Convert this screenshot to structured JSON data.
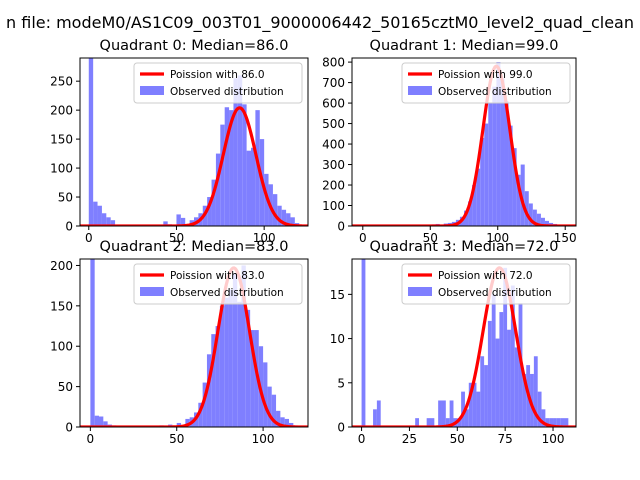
{
  "figure": {
    "suptitle": "n file: modeM0/AS1C09_003T01_9000006442_50165cztM0_level2_quad_clean",
    "colors": {
      "histogram": "#7f7fff",
      "poisson": "#ff0000",
      "axis": "#000000",
      "background": "#ffffff"
    },
    "legend_location": "upper right"
  },
  "chart_data": [
    {
      "type": "bar",
      "title": "Quadrant 0: Median=86.0",
      "median": 86.0,
      "xlim": [
        -5,
        125
      ],
      "ylim": [
        0,
        290
      ],
      "xticks": [
        0,
        50,
        100
      ],
      "yticks": [
        0,
        50,
        100,
        150,
        200,
        250
      ],
      "legend": [
        "Poission with 86.0",
        "Observed distribution"
      ],
      "poisson_peak": 204,
      "histogram": {
        "bin_width": 2.5,
        "x": [
          0,
          2.5,
          5,
          7.5,
          10,
          12.5,
          42.5,
          45,
          50,
          52.5,
          57.5,
          60,
          62.5,
          65,
          67.5,
          70,
          72.5,
          75,
          77.5,
          80,
          82.5,
          85,
          87.5,
          90,
          92.5,
          95,
          97.5,
          100,
          102.5,
          105,
          107.5,
          110,
          112.5,
          115,
          117.5,
          120
        ],
        "counts": [
          290,
          42,
          35,
          22,
          15,
          10,
          8,
          3,
          20,
          14,
          10,
          15,
          22,
          35,
          50,
          80,
          125,
          175,
          205,
          200,
          255,
          260,
          210,
          130,
          135,
          200,
          150,
          90,
          72,
          55,
          35,
          28,
          22,
          15,
          5,
          2
        ]
      }
    },
    {
      "type": "bar",
      "title": "Quadrant 1: Median=99.0",
      "median": 99.0,
      "xlim": [
        -8,
        158
      ],
      "ylim": [
        0,
        820
      ],
      "xticks": [
        0,
        50,
        100,
        150
      ],
      "yticks": [
        0,
        100,
        200,
        300,
        400,
        500,
        600,
        700,
        800
      ],
      "legend": [
        "Poission with 99.0",
        "Observed distribution"
      ],
      "poisson_peak": 780,
      "histogram": {
        "bin_width": 3,
        "x": [
          51,
          54,
          57,
          60,
          63,
          66,
          69,
          72,
          75,
          78,
          81,
          84,
          87,
          90,
          93,
          96,
          99,
          102,
          105,
          108,
          111,
          114,
          117,
          120,
          123,
          126,
          129,
          132,
          135,
          138,
          141,
          144,
          147
        ],
        "counts": [
          8,
          10,
          6,
          12,
          15,
          20,
          30,
          45,
          75,
          120,
          200,
          280,
          430,
          500,
          600,
          680,
          800,
          720,
          610,
          490,
          380,
          250,
          300,
          170,
          110,
          80,
          60,
          40,
          25,
          15,
          10,
          5,
          3
        ]
      }
    },
    {
      "type": "bar",
      "title": "Quadrant 2: Median=83.0",
      "median": 83.0,
      "xlim": [
        -6,
        126
      ],
      "ylim": [
        0,
        208
      ],
      "xticks": [
        0,
        50,
        100
      ],
      "yticks": [
        0,
        50,
        100,
        150,
        200
      ],
      "legend": [
        "Poission with 83.0",
        "Observed distribution"
      ],
      "poisson_peak": 197,
      "histogram": {
        "bin_width": 2.5,
        "x": [
          0,
          2.5,
          5,
          7.5,
          10,
          12.5,
          40,
          45,
          50,
          55,
          57.5,
          60,
          62.5,
          65,
          67.5,
          70,
          72.5,
          75,
          77.5,
          80,
          82.5,
          85,
          87.5,
          90,
          92.5,
          95,
          97.5,
          100,
          102.5,
          105,
          107.5,
          110,
          112.5,
          115,
          117.5
        ],
        "counts": [
          208,
          14,
          13,
          7,
          3,
          2,
          2,
          3,
          5,
          10,
          12,
          18,
          30,
          55,
          90,
          115,
          125,
          150,
          160,
          170,
          190,
          155,
          200,
          145,
          120,
          120,
          100,
          80,
          50,
          40,
          20,
          12,
          10,
          5,
          2
        ]
      }
    },
    {
      "type": "bar",
      "title": "Quadrant 3: Median=72.0",
      "median": 72.0,
      "xlim": [
        -5,
        112
      ],
      "ylim": [
        0,
        19
      ],
      "xticks": [
        0,
        25,
        50,
        75,
        100
      ],
      "yticks": [
        0,
        5,
        10,
        15
      ],
      "legend": [
        "Poission with 72.0",
        "Observed distribution"
      ],
      "poisson_peak": 18,
      "histogram": {
        "bin_width": 2,
        "x": [
          0,
          6,
          8,
          28,
          34,
          36,
          40,
          42,
          44,
          46,
          48,
          50,
          52,
          54,
          56,
          58,
          60,
          62,
          64,
          66,
          68,
          70,
          72,
          74,
          76,
          78,
          80,
          82,
          84,
          86,
          88,
          90,
          92,
          94,
          96,
          98,
          100,
          102,
          104,
          106
        ],
        "counts": [
          19,
          2,
          3,
          1,
          1,
          1,
          3,
          3,
          1,
          3,
          1,
          1,
          4,
          2,
          5,
          5,
          4,
          8,
          7,
          12,
          15,
          10,
          13,
          18,
          11,
          16,
          9,
          14,
          6,
          7,
          6,
          8,
          4,
          2,
          1,
          1,
          1,
          1,
          1,
          1
        ]
      }
    }
  ]
}
